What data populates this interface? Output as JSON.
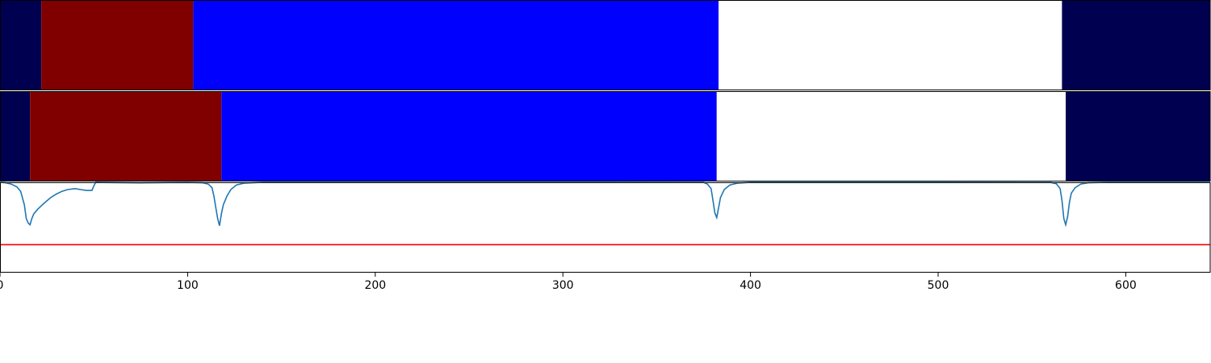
{
  "chart_data": [
    {
      "type": "bar",
      "orientation": "horizontal-segments",
      "description_of_segments": "segment class bands along x",
      "xlim": [
        0,
        645
      ],
      "segments": [
        {
          "start": 0,
          "end": 22,
          "color": "#000050"
        },
        {
          "start": 22,
          "end": 103,
          "color": "#800000"
        },
        {
          "start": 103,
          "end": 383,
          "color": "#0000ff"
        },
        {
          "start": 383,
          "end": 566,
          "color": "#ffffff"
        },
        {
          "start": 566,
          "end": 645,
          "color": "#000050"
        }
      ]
    },
    {
      "type": "bar",
      "orientation": "horizontal-segments",
      "xlim": [
        0,
        645
      ],
      "segments": [
        {
          "start": 0,
          "end": 16,
          "color": "#000050"
        },
        {
          "start": 16,
          "end": 118,
          "color": "#800000"
        },
        {
          "start": 118,
          "end": 382,
          "color": "#0000ff"
        },
        {
          "start": 382,
          "end": 568,
          "color": "#ffffff"
        },
        {
          "start": 568,
          "end": 645,
          "color": "#000050"
        }
      ]
    },
    {
      "type": "line",
      "xlim": [
        0,
        645
      ],
      "ylim": [
        0,
        1
      ],
      "series": [
        {
          "color": "#1f77b4",
          "points": [
            [
              0,
              1.0
            ],
            [
              3,
              0.995
            ],
            [
              6,
              0.98
            ],
            [
              9,
              0.95
            ],
            [
              11,
              0.9
            ],
            [
              13,
              0.75
            ],
            [
              14,
              0.6
            ],
            [
              15,
              0.55
            ],
            [
              16,
              0.53
            ],
            [
              17,
              0.6
            ],
            [
              18,
              0.65
            ],
            [
              20,
              0.7
            ],
            [
              23,
              0.76
            ],
            [
              27,
              0.83
            ],
            [
              30,
              0.87
            ],
            [
              33,
              0.9
            ],
            [
              36,
              0.92
            ],
            [
              40,
              0.93
            ],
            [
              43,
              0.92
            ],
            [
              46,
              0.91
            ],
            [
              49,
              0.91
            ],
            [
              50,
              0.96
            ],
            [
              51,
              1.0
            ],
            [
              55,
              0.998
            ],
            [
              60,
              0.997
            ],
            [
              65,
              0.996
            ],
            [
              70,
              0.995
            ],
            [
              75,
              0.994
            ],
            [
              78,
              0.995
            ],
            [
              80,
              0.995
            ],
            [
              85,
              0.996
            ],
            [
              90,
              0.997
            ],
            [
              100,
              0.998
            ],
            [
              108,
              0.995
            ],
            [
              111,
              0.98
            ],
            [
              113,
              0.94
            ],
            [
              114,
              0.85
            ],
            [
              115,
              0.72
            ],
            [
              116,
              0.6
            ],
            [
              117,
              0.52
            ],
            [
              118,
              0.65
            ],
            [
              119,
              0.75
            ],
            [
              121,
              0.85
            ],
            [
              123,
              0.92
            ],
            [
              126,
              0.97
            ],
            [
              130,
              0.99
            ],
            [
              140,
              1.0
            ],
            [
              200,
              1.0
            ],
            [
              300,
              1.0
            ],
            [
              375,
              0.998
            ],
            [
              377,
              0.98
            ],
            [
              379,
              0.93
            ],
            [
              380,
              0.8
            ],
            [
              381,
              0.66
            ],
            [
              382,
              0.61
            ],
            [
              383,
              0.72
            ],
            [
              384,
              0.83
            ],
            [
              386,
              0.92
            ],
            [
              389,
              0.97
            ],
            [
              393,
              0.99
            ],
            [
              400,
              1.0
            ],
            [
              500,
              1.0
            ],
            [
              560,
              0.998
            ],
            [
              563,
              0.985
            ],
            [
              565,
              0.93
            ],
            [
              566,
              0.8
            ],
            [
              567,
              0.6
            ],
            [
              568,
              0.53
            ],
            [
              569,
              0.62
            ],
            [
              570,
              0.78
            ],
            [
              571,
              0.88
            ],
            [
              573,
              0.94
            ],
            [
              576,
              0.98
            ],
            [
              580,
              0.995
            ],
            [
              590,
              1.0
            ],
            [
              645,
              1.0
            ]
          ]
        },
        {
          "color": "#ff0000",
          "points": [
            [
              0,
              0.31
            ],
            [
              645,
              0.31
            ]
          ]
        }
      ],
      "xticks": [
        0,
        100,
        200,
        300,
        400,
        500,
        600
      ]
    }
  ]
}
